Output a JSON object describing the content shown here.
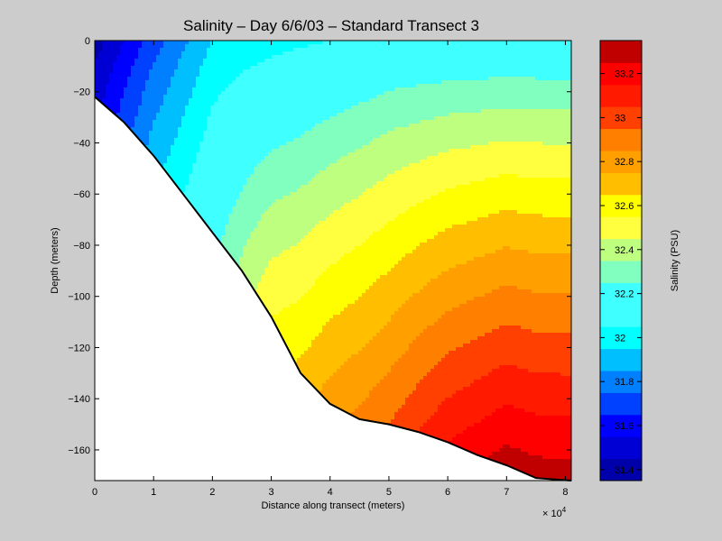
{
  "chart_data": {
    "type": "heatmap",
    "title": "Salinity – Day 6/6/03 – Standard Transect 3",
    "xlabel": "Distance along transect (meters)",
    "ylabel": "Depth (meters)",
    "x_multiplier_label": "× 10",
    "x_multiplier_exponent": "4",
    "xlim": [
      0,
      8.1
    ],
    "ylim": [
      -172,
      0
    ],
    "x_ticks": [
      0,
      1,
      2,
      3,
      4,
      5,
      6,
      7,
      8
    ],
    "x_tick_labels": [
      "0",
      "1",
      "2",
      "3",
      "4",
      "5",
      "6",
      "7",
      "8"
    ],
    "y_ticks": [
      0,
      -20,
      -40,
      -60,
      -80,
      -100,
      -120,
      -140,
      -160
    ],
    "y_tick_labels": [
      "0",
      "−20",
      "−40",
      "−60",
      "−80",
      "−100",
      "−120",
      "−140",
      "−160"
    ],
    "colorbar": {
      "label": "Salinity (PSU)",
      "range": [
        31.35,
        33.35
      ],
      "levels": [
        {
          "from": 31.35,
          "to": 31.45,
          "color": "#0000aa"
        },
        {
          "from": 31.45,
          "to": 31.55,
          "color": "#0000d4"
        },
        {
          "from": 31.55,
          "to": 31.65,
          "color": "#0000ff"
        },
        {
          "from": 31.65,
          "to": 31.75,
          "color": "#0040ff"
        },
        {
          "from": 31.75,
          "to": 31.85,
          "color": "#0080ff"
        },
        {
          "from": 31.85,
          "to": 31.95,
          "color": "#00bfff"
        },
        {
          "from": 31.95,
          "to": 32.05,
          "color": "#00ffff"
        },
        {
          "from": 32.05,
          "to": 32.15,
          "color": "#40ffff"
        },
        {
          "from": 32.15,
          "to": 32.25,
          "color": "#40ffff"
        },
        {
          "from": 32.25,
          "to": 32.35,
          "color": "#80ffbf"
        },
        {
          "from": 32.35,
          "to": 32.45,
          "color": "#bfff80"
        },
        {
          "from": 32.45,
          "to": 32.55,
          "color": "#ffff40"
        },
        {
          "from": 32.55,
          "to": 32.65,
          "color": "#ffff00"
        },
        {
          "from": 32.65,
          "to": 32.75,
          "color": "#ffbf00"
        },
        {
          "from": 32.75,
          "to": 32.85,
          "color": "#ff9f00"
        },
        {
          "from": 32.85,
          "to": 32.95,
          "color": "#ff8000"
        },
        {
          "from": 32.95,
          "to": 33.05,
          "color": "#ff4000"
        },
        {
          "from": 33.05,
          "to": 33.15,
          "color": "#ff1a00"
        },
        {
          "from": 33.15,
          "to": 33.25,
          "color": "#ff0000"
        },
        {
          "from": 33.25,
          "to": 33.35,
          "color": "#c00000"
        }
      ],
      "ticks": [
        31.4,
        31.6,
        31.8,
        32,
        32.2,
        32.4,
        32.6,
        32.8,
        33,
        33.2
      ],
      "tick_labels": [
        "31.4",
        "31.6",
        "31.8",
        "32",
        "32.2",
        "32.4",
        "32.6",
        "32.8",
        "33",
        "33.2"
      ]
    },
    "bathymetry": [
      {
        "x": 0,
        "y": -22
      },
      {
        "x": 0.5,
        "y": -32
      },
      {
        "x": 1.0,
        "y": -45
      },
      {
        "x": 1.5,
        "y": -60
      },
      {
        "x": 2.0,
        "y": -75
      },
      {
        "x": 2.5,
        "y": -90
      },
      {
        "x": 3.0,
        "y": -108
      },
      {
        "x": 3.5,
        "y": -130
      },
      {
        "x": 4.0,
        "y": -142
      },
      {
        "x": 4.5,
        "y": -148
      },
      {
        "x": 5.0,
        "y": -150
      },
      {
        "x": 5.5,
        "y": -153
      },
      {
        "x": 6.0,
        "y": -157
      },
      {
        "x": 6.5,
        "y": -162
      },
      {
        "x": 7.0,
        "y": -166
      },
      {
        "x": 7.5,
        "y": -171
      },
      {
        "x": 8.1,
        "y": -172
      }
    ],
    "salinity_surface_profile": [
      {
        "x": 0,
        "surface": 31.4,
        "bottom": 31.5
      },
      {
        "x": 1,
        "surface": 31.7,
        "bottom": 31.9
      },
      {
        "x": 2,
        "surface": 31.95,
        "bottom": 32.2
      },
      {
        "x": 3,
        "surface": 32.0,
        "bottom": 32.55
      },
      {
        "x": 4,
        "surface": 32.05,
        "bottom": 32.8
      },
      {
        "x": 5,
        "surface": 32.1,
        "bottom": 32.95
      },
      {
        "x": 6,
        "surface": 32.1,
        "bottom": 33.15
      },
      {
        "x": 7,
        "surface": 32.1,
        "bottom": 33.3
      },
      {
        "x": 8.1,
        "surface": 32.1,
        "bottom": 33.3
      }
    ],
    "grid": false,
    "legend": "colorbar-right"
  }
}
